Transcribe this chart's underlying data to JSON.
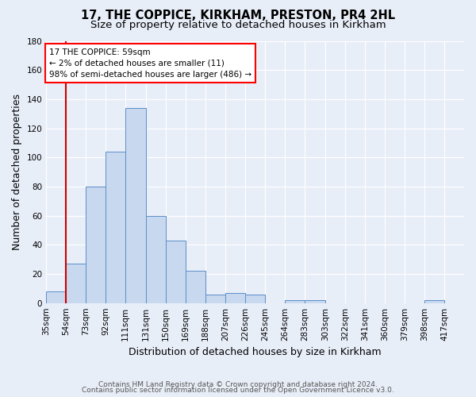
{
  "title": "17, THE COPPICE, KIRKHAM, PRESTON, PR4 2HL",
  "subtitle": "Size of property relative to detached houses in Kirkham",
  "xlabel": "Distribution of detached houses by size in Kirkham",
  "ylabel": "Number of detached properties",
  "footer1": "Contains HM Land Registry data © Crown copyright and database right 2024.",
  "footer2": "Contains public sector information licensed under the Open Government Licence v3.0.",
  "bar_labels": [
    "35sqm",
    "54sqm",
    "73sqm",
    "92sqm",
    "111sqm",
    "131sqm",
    "150sqm",
    "169sqm",
    "188sqm",
    "207sqm",
    "226sqm",
    "245sqm",
    "264sqm",
    "283sqm",
    "303sqm",
    "322sqm",
    "341sqm",
    "360sqm",
    "379sqm",
    "398sqm",
    "417sqm"
  ],
  "bar_values": [
    8,
    27,
    80,
    104,
    134,
    60,
    43,
    22,
    6,
    7,
    6,
    0,
    2,
    2,
    0,
    0,
    0,
    0,
    0,
    2,
    0
  ],
  "bar_color": "#c8d8ee",
  "bar_edge_color": "#5b8fc9",
  "vline_x": 54,
  "annotation_line1": "17 THE COPPICE: 59sqm",
  "annotation_line2": "← 2% of detached houses are smaller (11)",
  "annotation_line3": "98% of semi-detached houses are larger (486) →",
  "annotation_box_color": "white",
  "annotation_box_edge_color": "red",
  "vline_color": "#cc0000",
  "ylim": [
    0,
    180
  ],
  "yticks": [
    0,
    20,
    40,
    60,
    80,
    100,
    120,
    140,
    160,
    180
  ],
  "bin_edges": [
    35,
    54,
    73,
    92,
    111,
    131,
    150,
    169,
    188,
    207,
    226,
    245,
    264,
    283,
    303,
    322,
    341,
    360,
    379,
    398,
    417,
    436
  ],
  "bg_color": "#e8eef8",
  "plot_bg_color": "#e8eef8",
  "title_fontsize": 10.5,
  "subtitle_fontsize": 9.5,
  "axis_label_fontsize": 9,
  "tick_fontsize": 7.5,
  "footer_fontsize": 6.5
}
